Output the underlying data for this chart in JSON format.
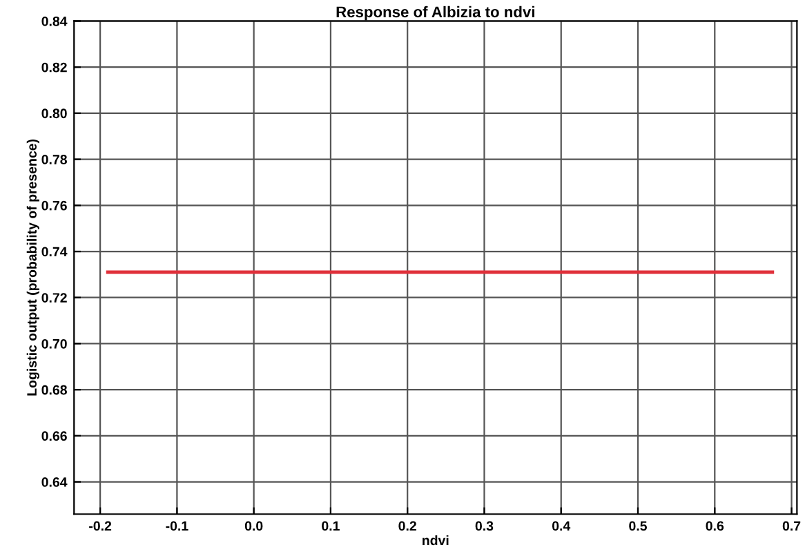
{
  "chart_data": {
    "type": "line",
    "title": "Response of Albizia to ndvi",
    "xlabel": "ndvi",
    "ylabel": "Logistic output (probability of presence)",
    "series": [
      {
        "color": "#e0303a",
        "x": [
          -0.19,
          0.675
        ],
        "values": [
          0.731,
          0.731
        ]
      }
    ],
    "xlim": [
      -0.234,
      0.707
    ],
    "xticks": [
      -0.2,
      -0.1,
      {
        "value": 0.0,
        "label": "0.0"
      },
      0.1,
      0.2,
      0.3,
      0.4,
      0.5,
      0.6,
      0.7
    ],
    "ylim": [
      0.626,
      0.84
    ],
    "yticks": [
      0.64,
      0.66,
      0.68,
      {
        "value": 0.7,
        "label": "0.70"
      },
      0.72,
      0.74,
      0.76,
      0.78,
      {
        "value": 0.8,
        "label": "0.80"
      },
      0.82,
      0.84
    ],
    "grid": true,
    "marker": "none",
    "line_style": "solid"
  }
}
